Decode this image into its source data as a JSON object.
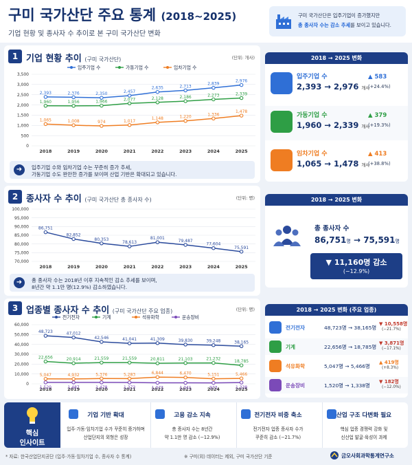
{
  "header": {
    "title": "구미 국가산단 주요 통계",
    "title_years": "(2018~2025)",
    "subtitle": "기업 현황 및 종사자 수 추이로 본 구미 국가산단 변화",
    "summary_line1": "구미 국가산단은 입주기업이 증가했지만",
    "summary_line2_em": "총 종사자 수는 감소 추세",
    "summary_line2_rest": "를 보이고 있습니다."
  },
  "sections": {
    "s1": {
      "num": "1",
      "title": "기업 현황 추이",
      "sub": "(구미 국가산단)",
      "unit": "(단위: 개사)"
    },
    "s2": {
      "num": "2",
      "title": "종사자 수 추이",
      "sub": "(구미 국가산단 총 종사자 수)",
      "unit": "(단위: 명)"
    },
    "s3": {
      "num": "3",
      "title": "업종별 종사자 수 추이",
      "sub": "(구미 국가산단 주요 업종)",
      "unit": "(단위: 명)"
    }
  },
  "chart_data": [
    {
      "type": "line",
      "x": [
        "2018",
        "2019",
        "2020",
        "2021",
        "2022",
        "2023",
        "2024",
        "2025"
      ],
      "ylim": [
        0,
        3500
      ],
      "yticks": [
        "0",
        "500",
        "1,000",
        "1,500",
        "2,000",
        "2,500",
        "3,000",
        "3,500"
      ],
      "legend_position": "top",
      "series": [
        {
          "name": "입주기업 수",
          "color": "#2f6fd6",
          "values": [
            2393,
            2376,
            2350,
            2457,
            2635,
            2713,
            2839,
            2976
          ],
          "labels": [
            "2,393",
            "2,376",
            "2,350",
            "2,457",
            "2,635",
            "2,713",
            "2,839",
            "2,976"
          ]
        },
        {
          "name": "가동기업 수",
          "color": "#2e9e45",
          "values": [
            1960,
            1956,
            1966,
            2077,
            2128,
            2186,
            2273,
            2339
          ],
          "labels": [
            "1,960",
            "1,956",
            "1,966",
            "2,077",
            "2,128",
            "2,186",
            "2,273",
            "2,339"
          ]
        },
        {
          "name": "임차기업 수",
          "color": "#ef7d22",
          "values": [
            1065,
            1008,
            974,
            1017,
            1148,
            1220,
            1336,
            1478
          ],
          "labels": [
            "1,065",
            "1,008",
            "974",
            "1,017",
            "1,148",
            "1,220",
            "1,336",
            "1,478"
          ]
        }
      ]
    },
    {
      "type": "line",
      "x": [
        "2018",
        "2019",
        "2020",
        "2021",
        "2022",
        "2023",
        "2024",
        "2025"
      ],
      "ylim": [
        70000,
        100000
      ],
      "yticks": [
        "70,000",
        "75,000",
        "80,000",
        "85,000",
        "90,000",
        "95,000",
        "100,000"
      ],
      "series": [
        {
          "name": "총 종사자 수",
          "color": "#2a4a9c",
          "values": [
            86751,
            82852,
            80353,
            78613,
            81001,
            79487,
            77604,
            75591
          ],
          "labels": [
            "86,751",
            "82,852",
            "80,353",
            "78,613",
            "81,001",
            "79,487",
            "77,604",
            "75,591"
          ]
        }
      ]
    },
    {
      "type": "line",
      "x": [
        "2018",
        "2019",
        "2020",
        "2021",
        "2022",
        "2023",
        "2024",
        "2025"
      ],
      "ylim": [
        0,
        60000
      ],
      "yticks": [
        "0",
        "10,000",
        "20,000",
        "30,000",
        "40,000",
        "50,000",
        "60,000"
      ],
      "legend_position": "top",
      "series": [
        {
          "name": "전기전자",
          "color": "#2a4a9c",
          "values": [
            48723,
            47012,
            42546,
            41041,
            41309,
            39830,
            39248,
            38165
          ],
          "labels": [
            "48,723",
            "47,012",
            "42,546",
            "41,041",
            "41,309",
            "39,830",
            "39,248",
            "38,165"
          ]
        },
        {
          "name": "기계",
          "color": "#2e9e45",
          "values": [
            22656,
            20914,
            21559,
            21559,
            20811,
            21103,
            21232,
            18785
          ],
          "labels": [
            "22,656",
            "20,914",
            "21,559",
            "21,559",
            "20,811",
            "21,103",
            "21,232",
            "18,785"
          ]
        },
        {
          "name": "석유화학",
          "color": "#ef7d22",
          "values": [
            5047,
            4932,
            5376,
            5283,
            6844,
            6470,
            5151,
            5466
          ],
          "labels": [
            "5,047",
            "4,932",
            "5,376",
            "5,283",
            "6,844",
            "6,470",
            "5,151",
            "5,466"
          ]
        },
        {
          "name": "운송장비",
          "color": "#7b4ab8",
          "values": [
            1520,
            1487,
            1478,
            1373,
            1073,
            1041,
            973,
            1338
          ],
          "labels": [
            "1,520",
            "1,487",
            "1,478",
            "1,373",
            "1,073",
            "1,041",
            "973",
            "1,338"
          ]
        }
      ]
    }
  ],
  "notes": {
    "n1_line1": "입주기업 수와 임차기업 수는 꾸준히 증가 추세,",
    "n1_line2": "가동기업 수도 완만한 증가를 보이며 산업 기반은 확대되고 있습니다.",
    "n2_line1": "총 종사자 수는 2018년 이후 지속적인 감소 추세를 보이며,",
    "n2_line2": "8년간 약 1.1만 명(12.9%) 감소하였습니다."
  },
  "panel1": {
    "header": "2018 → 2025 변화",
    "items": [
      {
        "name": "입주기업 수",
        "value": "2,393 → 2,976",
        "unit": "개사",
        "delta": "▲ 583",
        "pct": "(+24.4%)",
        "color": "#2f6fd6",
        "icon": "building-icon"
      },
      {
        "name": "가동기업 수",
        "value": "1,960 → 2,339",
        "unit": "개사",
        "delta": "▲ 379",
        "pct": "(+19.3%)",
        "color": "#2e9e45",
        "icon": "gear-icon"
      },
      {
        "name": "임차기업 수",
        "value": "1,065 → 1,478",
        "unit": "개사",
        "delta": "▲ 413",
        "pct": "(+38.8%)",
        "color": "#ef7d22",
        "icon": "handshake-icon"
      }
    ]
  },
  "panel2": {
    "header": "2018 → 2025 변화",
    "label": "총 종사자 수",
    "from": "86,751",
    "to": "75,591",
    "unit": "명",
    "delta": "▼ 11,160명 감소",
    "pct": "(−12.9%)"
  },
  "panel3": {
    "header": "2018 → 2025 변화 (주요 업종)",
    "items": [
      {
        "name": "전기전자",
        "from": "48,723",
        "to": "38,165",
        "unit": "명",
        "delta": "▼ 10,558",
        "delta_unit": "명",
        "pct": "(−21.7%)",
        "color": "#2f6fd6",
        "icon": "chip-icon"
      },
      {
        "name": "기계",
        "from": "22,656",
        "to": "18,785",
        "unit": "명",
        "delta": "▼ 3,871",
        "delta_unit": "명",
        "pct": "(−17.1%)",
        "color": "#2e9e45",
        "icon": "gear-icon"
      },
      {
        "name": "석유화학",
        "from": "5,047",
        "to": "5,466",
        "unit": "명",
        "delta": "▲ 419",
        "delta_unit": "명",
        "pct": "(+8.3%)",
        "color": "#ef7d22",
        "icon": "flask-icon"
      },
      {
        "name": "운송장비",
        "from": "1,520",
        "to": "1,338",
        "unit": "명",
        "delta": "▼ 182",
        "delta_unit": "명",
        "pct": "(−12.0%)",
        "color": "#7b4ab8",
        "icon": "car-icon"
      }
    ]
  },
  "insights": {
    "key1": "핵심",
    "key2": "인사이트",
    "items": [
      {
        "title": "기업 기반 확대",
        "b1": "입주·가동·임차기업 수가 꾸준히 증가하며",
        "b2": "산업단지의 외형은 성장",
        "icon": "building-icon"
      },
      {
        "title": "고용 감소 지속",
        "b1": "총 종사자 수는 8년간",
        "b2": "약 1.1만 명 감소 (−12.9%)",
        "icon": "people-icon"
      },
      {
        "title": "전기전자 비중 축소",
        "b1": "전기전자 업종 종사자 수가",
        "b2": "꾸준히 감소 (−21.7%)",
        "icon": "chip-icon"
      },
      {
        "title": "산업 구조 다변화 필요",
        "b1": "핵심 업종 경쟁력 강화 및",
        "b2": "신산업 발굴·육성이 과제",
        "icon": "target-icon"
      }
    ]
  },
  "footer": {
    "source": "* 자료: 한국산업단지공단 (입주·가동·임차기업 수, 종사자 수 통계)",
    "note": "※ 구미(외) 데이터는 제외, 구미 국가산단 기준",
    "org": "금오사회과학통계연구소"
  }
}
